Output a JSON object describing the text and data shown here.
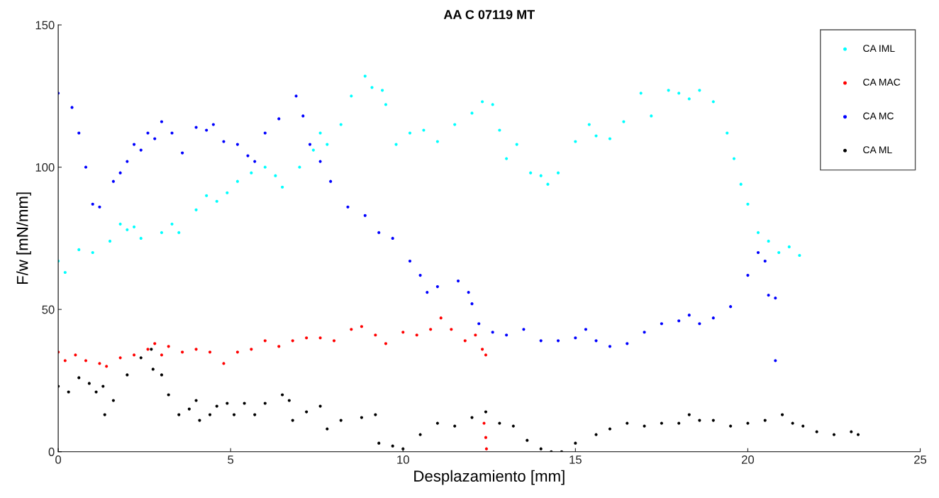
{
  "chart_data": {
    "type": "scatter",
    "title": "AA C 07119 MT",
    "xlabel": "Desplazamiento [mm]",
    "ylabel": "F/w [mN/mm]",
    "xlim": [
      0,
      25
    ],
    "ylim": [
      0,
      150
    ],
    "xticks": [
      0,
      5,
      10,
      15,
      20,
      25
    ],
    "yticks": [
      0,
      50,
      100,
      150
    ],
    "grid": false,
    "legend": "top right",
    "marker": "circle",
    "series": [
      {
        "name": "CA IML",
        "color": "#00ffff",
        "x": [
          0,
          0.2,
          0.6,
          1.0,
          1.5,
          1.8,
          2.0,
          2.2,
          2.4,
          3.0,
          3.3,
          3.5,
          4.0,
          4.3,
          4.6,
          4.9,
          5.2,
          5.6,
          6.0,
          6.3,
          6.5,
          7.0,
          7.4,
          7.6,
          7.8,
          8.2,
          8.5,
          8.9,
          9.1,
          9.4,
          9.5,
          9.8,
          10.2,
          10.6,
          11.0,
          11.5,
          12.0,
          12.3,
          12.6,
          12.8,
          13.0,
          13.3,
          13.7,
          14.0,
          14.2,
          14.5,
          15.0,
          15.4,
          15.6,
          16.0,
          16.4,
          16.9,
          17.2,
          17.7,
          18.0,
          18.3,
          18.6,
          19.0,
          19.4,
          19.6,
          19.8,
          20.0,
          20.3,
          20.6,
          20.9,
          21.2,
          21.5
        ],
        "values": [
          67,
          63,
          71,
          70,
          74,
          80,
          78,
          79,
          75,
          77,
          80,
          77,
          85,
          90,
          88,
          91,
          95,
          98,
          100,
          97,
          93,
          100,
          106,
          112,
          108,
          115,
          125,
          132,
          128,
          127,
          122,
          108,
          112,
          113,
          109,
          115,
          119,
          123,
          122,
          113,
          103,
          108,
          98,
          97,
          94,
          98,
          109,
          115,
          111,
          110,
          116,
          126,
          118,
          127,
          126,
          124,
          127,
          123,
          112,
          103,
          94,
          87,
          77,
          74,
          70,
          72,
          69
        ]
      },
      {
        "name": "CA MAC",
        "color": "#ff0000",
        "x": [
          0,
          0.2,
          0.5,
          0.8,
          1.2,
          1.4,
          1.8,
          2.2,
          2.6,
          2.8,
          3.0,
          3.2,
          3.6,
          4.0,
          4.4,
          4.8,
          5.2,
          5.6,
          6.0,
          6.4,
          6.8,
          7.2,
          7.6,
          8.0,
          8.5,
          8.8,
          9.2,
          9.5,
          10.0,
          10.4,
          10.8,
          11.1,
          11.4,
          11.8,
          12.1,
          12.3,
          12.4,
          12.35,
          12.4,
          12.42
        ],
        "values": [
          35,
          32,
          34,
          32,
          31,
          30,
          33,
          34,
          36,
          38,
          34,
          37,
          35,
          36,
          35,
          31,
          35,
          36,
          39,
          37,
          39,
          40,
          40,
          39,
          43,
          44,
          41,
          38,
          42,
          41,
          43,
          47,
          43,
          39,
          41,
          36,
          34,
          10,
          5,
          1
        ]
      },
      {
        "name": "CA MC",
        "color": "#0000ff",
        "x": [
          0,
          0.4,
          0.6,
          0.8,
          1.0,
          1.2,
          1.6,
          1.8,
          2.0,
          2.2,
          2.4,
          2.6,
          2.8,
          3.0,
          3.3,
          3.6,
          4.0,
          4.3,
          4.5,
          4.8,
          5.2,
          5.5,
          5.7,
          6.0,
          6.4,
          6.9,
          7.1,
          7.3,
          7.6,
          7.9,
          8.4,
          8.9,
          9.3,
          9.7,
          10.2,
          10.5,
          10.7,
          11.0,
          11.6,
          11.9,
          12.0,
          12.2,
          12.6,
          13.0,
          13.5,
          14.0,
          14.5,
          15.0,
          15.3,
          15.6,
          16.0,
          16.5,
          17.0,
          17.5,
          18.0,
          18.3,
          18.6,
          19.0,
          19.5,
          20.0,
          20.3,
          20.5,
          20.6,
          20.8,
          20.8
        ],
        "values": [
          126,
          121,
          112,
          100,
          87,
          86,
          95,
          98,
          102,
          108,
          106,
          112,
          110,
          116,
          112,
          105,
          114,
          113,
          115,
          109,
          108,
          104,
          102,
          112,
          117,
          125,
          118,
          108,
          102,
          95,
          86,
          83,
          77,
          75,
          67,
          62,
          56,
          58,
          60,
          56,
          52,
          45,
          42,
          41,
          43,
          39,
          39,
          40,
          43,
          39,
          37,
          38,
          42,
          45,
          46,
          48,
          45,
          47,
          51,
          62,
          70,
          67,
          55,
          54,
          32
        ]
      },
      {
        "name": "CA ML",
        "color": "#000000",
        "x": [
          0,
          0.3,
          0.6,
          0.9,
          1.1,
          1.3,
          1.35,
          1.6,
          2.0,
          2.4,
          2.7,
          2.75,
          3.0,
          3.2,
          3.5,
          3.8,
          4.0,
          4.1,
          4.4,
          4.6,
          4.9,
          5.1,
          5.4,
          5.7,
          6.0,
          6.5,
          6.7,
          6.8,
          7.2,
          7.6,
          7.8,
          8.2,
          8.8,
          9.2,
          9.3,
          9.7,
          10.0,
          10.5,
          11.0,
          11.5,
          12.0,
          12.4,
          12.8,
          13.2,
          13.6,
          14.0,
          14.3,
          14.6,
          15.0,
          15.6,
          16.0,
          16.5,
          17.0,
          17.5,
          18.0,
          18.3,
          18.6,
          19.0,
          19.5,
          20.0,
          20.5,
          21.0,
          21.3,
          21.6,
          22.0,
          22.5,
          23.0,
          23.2
        ],
        "values": [
          23,
          21,
          26,
          24,
          21,
          23,
          13,
          18,
          27,
          33,
          36,
          29,
          27,
          20,
          13,
          15,
          18,
          11,
          13,
          16,
          17,
          13,
          17,
          13,
          17,
          20,
          18,
          11,
          14,
          16,
          8,
          11,
          12,
          13,
          3,
          2,
          1,
          6,
          10,
          9,
          12,
          14,
          10,
          9,
          4,
          1,
          0,
          0,
          3,
          6,
          8,
          10,
          9,
          10,
          10,
          13,
          11,
          11,
          9,
          10,
          11,
          13,
          10,
          9,
          7,
          6,
          7,
          6
        ]
      }
    ]
  }
}
